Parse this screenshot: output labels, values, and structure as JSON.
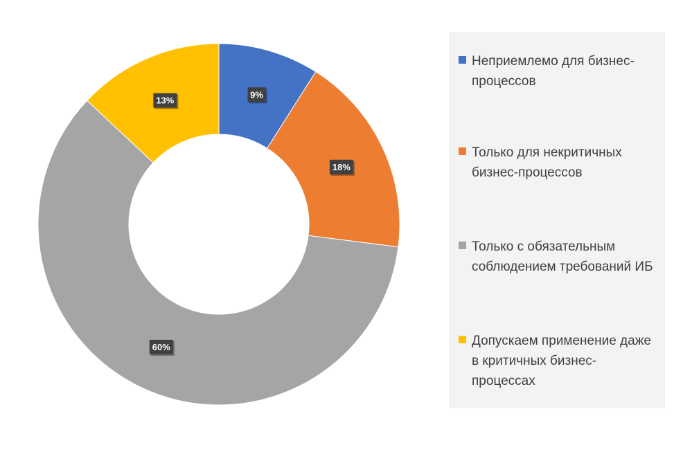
{
  "chart_data": {
    "type": "pie",
    "donut": true,
    "legend_position": "right",
    "slices": [
      {
        "label": "Неприемлемо для бизнес-процессов",
        "value": 9,
        "value_label": "9%",
        "color": "#4472c4"
      },
      {
        "label": "Только для некритичных бизнес-процессов",
        "value": 18,
        "value_label": "18%",
        "color": "#ed7d31"
      },
      {
        "label": "Только с обязательным соблюдением требований ИБ",
        "value": 60,
        "value_label": "60%",
        "color": "#a5a5a5"
      },
      {
        "label": "Допускаем применение даже в критичных бизнес-процессах",
        "value": 13,
        "value_label": "13%",
        "color": "#ffc000"
      }
    ]
  }
}
